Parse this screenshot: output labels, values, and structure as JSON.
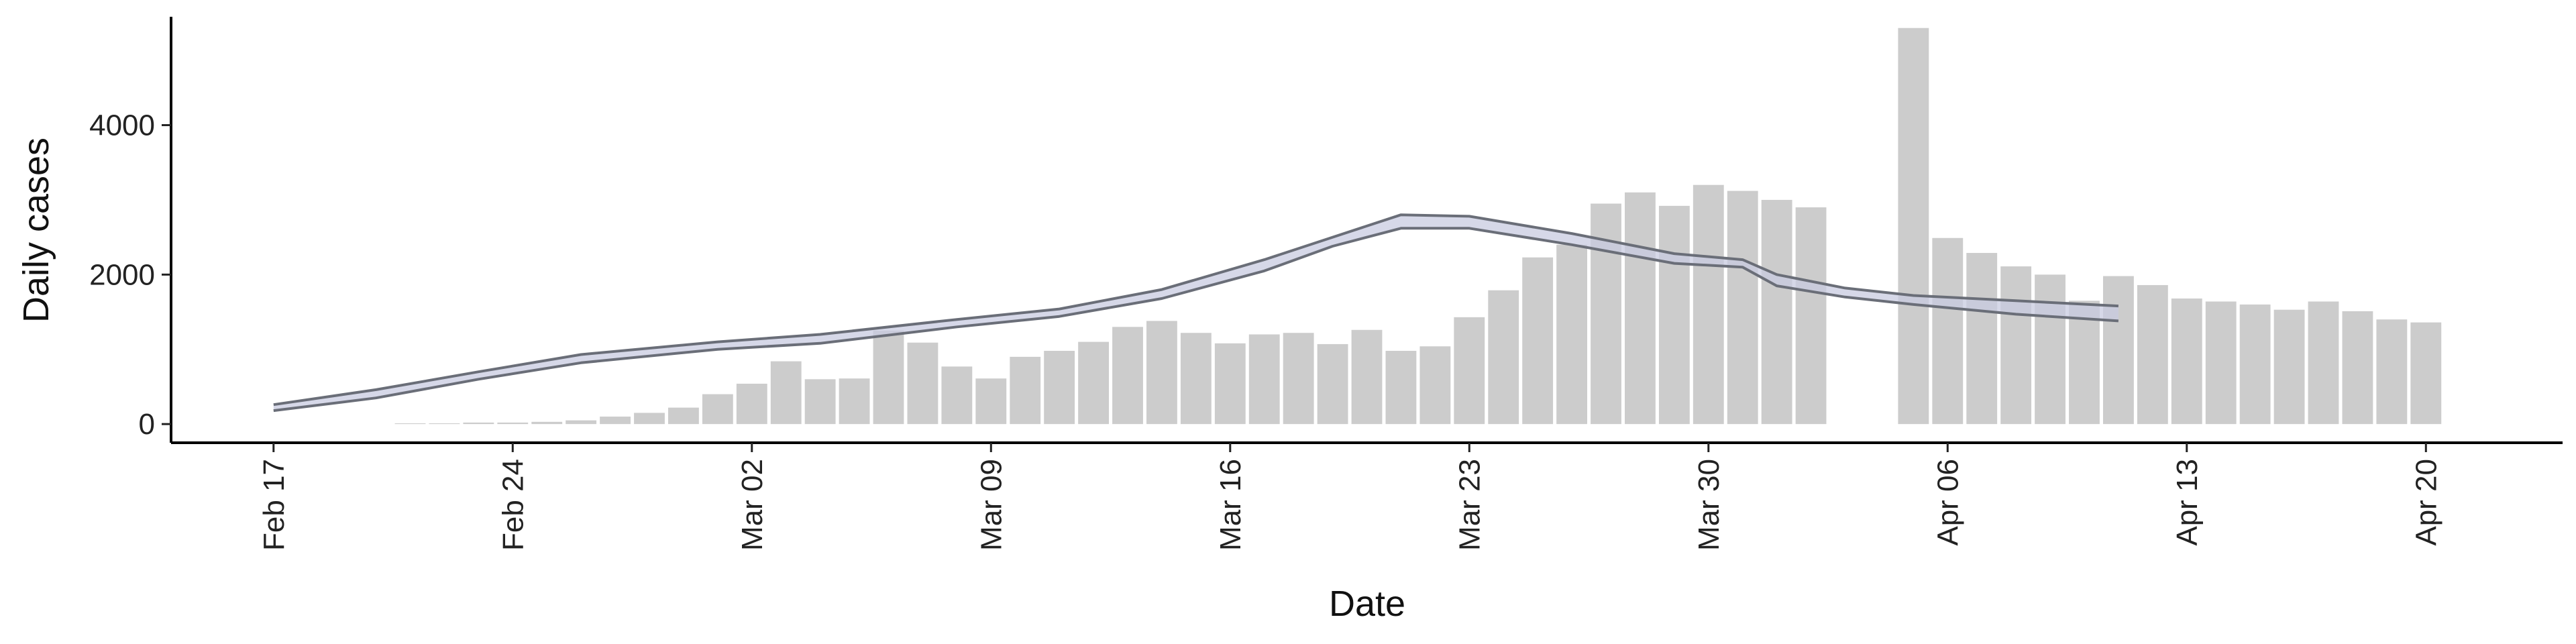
{
  "chart_data": {
    "type": "bar",
    "title": "",
    "xlabel": "Date",
    "ylabel": "Daily cases",
    "grid": false,
    "legend": "none",
    "ylim": [
      -250,
      5450
    ],
    "yticks": [
      0,
      2000,
      4000
    ],
    "x_range": [
      "2020-02-14",
      "2020-04-24"
    ],
    "xticks": [
      {
        "date": "2020-02-17",
        "label": "Feb 17"
      },
      {
        "date": "2020-02-24",
        "label": "Feb 24"
      },
      {
        "date": "2020-03-02",
        "label": "Mar 02"
      },
      {
        "date": "2020-03-09",
        "label": "Mar 09"
      },
      {
        "date": "2020-03-16",
        "label": "Mar 16"
      },
      {
        "date": "2020-03-23",
        "label": "Mar 23"
      },
      {
        "date": "2020-03-30",
        "label": "Mar 30"
      },
      {
        "date": "2020-04-06",
        "label": "Apr 06"
      },
      {
        "date": "2020-04-13",
        "label": "Apr 13"
      },
      {
        "date": "2020-04-20",
        "label": "Apr 20"
      }
    ],
    "bars": {
      "color": "#cccccc",
      "dates": [
        "2020-02-21",
        "2020-02-22",
        "2020-02-23",
        "2020-02-24",
        "2020-02-25",
        "2020-02-26",
        "2020-02-27",
        "2020-02-28",
        "2020-02-29",
        "2020-03-01",
        "2020-03-02",
        "2020-03-03",
        "2020-03-04",
        "2020-03-05",
        "2020-03-06",
        "2020-03-07",
        "2020-03-08",
        "2020-03-09",
        "2020-03-10",
        "2020-03-11",
        "2020-03-12",
        "2020-03-13",
        "2020-03-14",
        "2020-03-15",
        "2020-03-16",
        "2020-03-17",
        "2020-03-18",
        "2020-03-19",
        "2020-03-20",
        "2020-03-21",
        "2020-03-22",
        "2020-03-23",
        "2020-03-24",
        "2020-03-25",
        "2020-03-26",
        "2020-03-27",
        "2020-03-28",
        "2020-03-29",
        "2020-03-30",
        "2020-03-31",
        "2020-04-01",
        "2020-04-02",
        "2020-04-03",
        "2020-04-04",
        "2020-04-05",
        "2020-04-06",
        "2020-04-07",
        "2020-04-08",
        "2020-04-09",
        "2020-04-10",
        "2020-04-11",
        "2020-04-12",
        "2020-04-13",
        "2020-04-14",
        "2020-04-15",
        "2020-04-16",
        "2020-04-17",
        "2020-04-18",
        "2020-04-19",
        "2020-04-20"
      ],
      "values": [
        10,
        10,
        20,
        20,
        30,
        50,
        100,
        150,
        220,
        400,
        540,
        840,
        600,
        610,
        1250,
        1090,
        770,
        610,
        900,
        980,
        1100,
        1300,
        1380,
        1220,
        1080,
        1200,
        1220,
        1070,
        1260,
        980,
        1040,
        1430,
        1790,
        2230,
        2400,
        2950,
        3100,
        2920,
        3200,
        3120,
        3000,
        2900,
        null,
        null,
        5300,
        2490,
        2290,
        2110,
        2000,
        1650,
        1980,
        1860,
        1680,
        1640,
        1600,
        1530,
        1640,
        1510,
        1400,
        1360
      ]
    },
    "band": {
      "fill": "#c8cbe0",
      "line_color": "#6a6e78",
      "dates": [
        "2020-02-17",
        "2020-02-20",
        "2020-02-23",
        "2020-02-26",
        "2020-03-01",
        "2020-03-04",
        "2020-03-08",
        "2020-03-11",
        "2020-03-14",
        "2020-03-17",
        "2020-03-19",
        "2020-03-21",
        "2020-03-23",
        "2020-03-26",
        "2020-03-29",
        "2020-03-31",
        "2020-04-01",
        "2020-04-03",
        "2020-04-05",
        "2020-04-08",
        "2020-04-11"
      ],
      "upper": [
        260,
        460,
        700,
        930,
        1100,
        1200,
        1400,
        1540,
        1800,
        2200,
        2500,
        2800,
        2780,
        2550,
        2280,
        2200,
        2000,
        1820,
        1720,
        1650,
        1580
      ],
      "lower": [
        180,
        350,
        600,
        820,
        1000,
        1080,
        1300,
        1440,
        1680,
        2050,
        2380,
        2620,
        2620,
        2400,
        2150,
        2100,
        1850,
        1700,
        1600,
        1470,
        1380
      ]
    }
  }
}
